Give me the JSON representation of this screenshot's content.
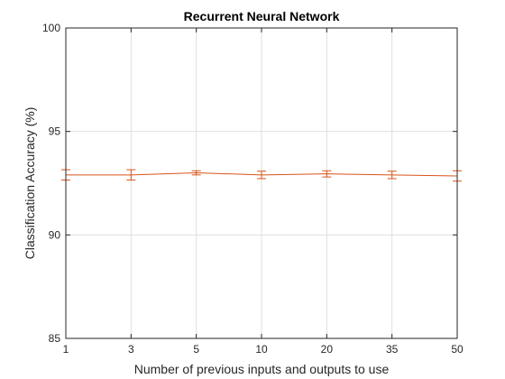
{
  "colors": {
    "series": "#d95319",
    "axis": "#262626",
    "grid": "#dfdfdf",
    "background": "#ffffff"
  },
  "chart_data": {
    "type": "line",
    "title": "Recurrent Neural Network",
    "xlabel": "Number of previous inputs and outputs to use",
    "ylabel": "Classification Accuracy (%)",
    "categories": [
      "1",
      "3",
      "5",
      "10",
      "20",
      "35",
      "50"
    ],
    "ylim": [
      85,
      100
    ],
    "yticks": [
      "85",
      "90",
      "95",
      "100"
    ],
    "grid": true,
    "series": [
      {
        "values": [
          92.9,
          92.9,
          93.0,
          92.9,
          92.95,
          92.9,
          92.85
        ],
        "error": [
          0.25,
          0.25,
          0.1,
          0.18,
          0.15,
          0.18,
          0.25
        ]
      }
    ]
  }
}
